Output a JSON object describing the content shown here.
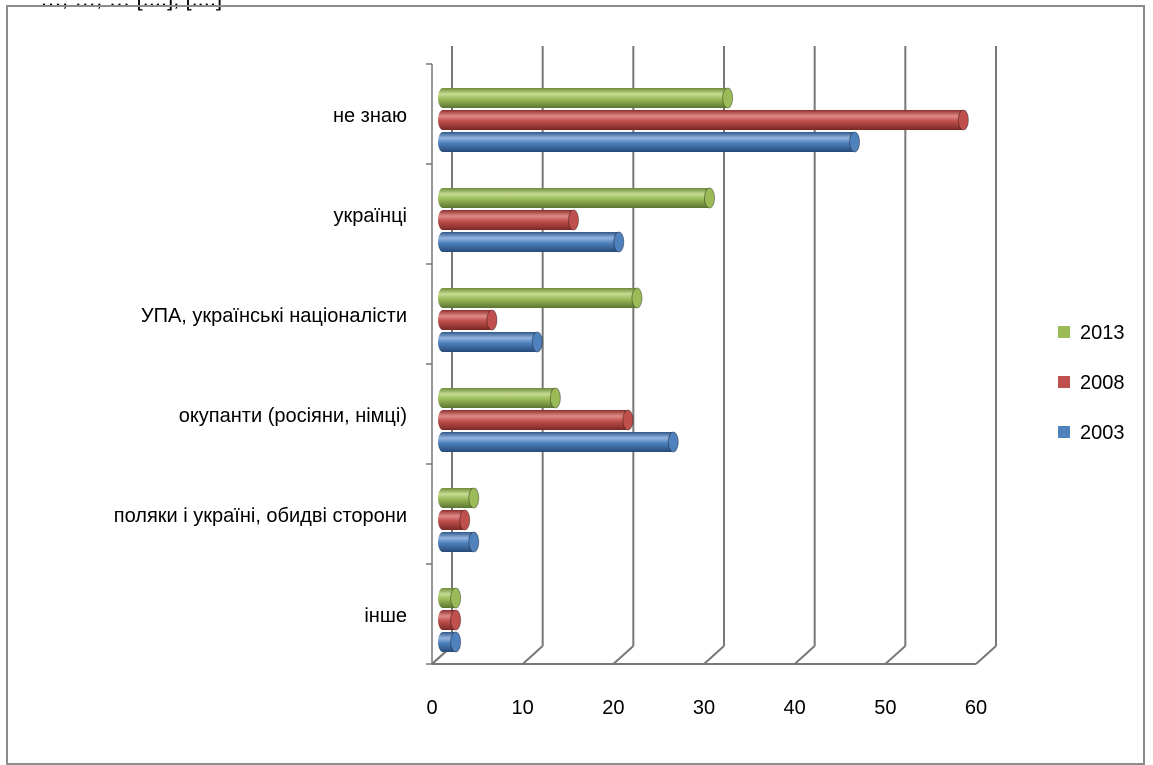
{
  "top_text": "…, …, … [....], [....]",
  "chart_data": {
    "type": "bar",
    "orientation": "horizontal",
    "style": "3d-cylinder",
    "categories": [
      "не знаю",
      "українці",
      "УПА, українські націоналісти",
      "окупанти (росіяни, німці)",
      "поляки і україні, обидві сторони",
      "інше"
    ],
    "series": [
      {
        "name": "2013",
        "color": "#9BBB59",
        "values": [
          32,
          30,
          22,
          13,
          4,
          2
        ]
      },
      {
        "name": "2008",
        "color": "#C0504D",
        "values": [
          58,
          15,
          6,
          21,
          3,
          2
        ]
      },
      {
        "name": "2003",
        "color": "#4F81BD",
        "values": [
          46,
          20,
          11,
          26,
          4,
          2
        ]
      }
    ],
    "xlim": [
      0,
      60
    ],
    "xticks": [
      "0",
      "10",
      "20",
      "30",
      "40",
      "50",
      "60"
    ],
    "grid": true,
    "legend_position": "right",
    "legend": [
      "2013",
      "2008",
      "2003"
    ]
  }
}
